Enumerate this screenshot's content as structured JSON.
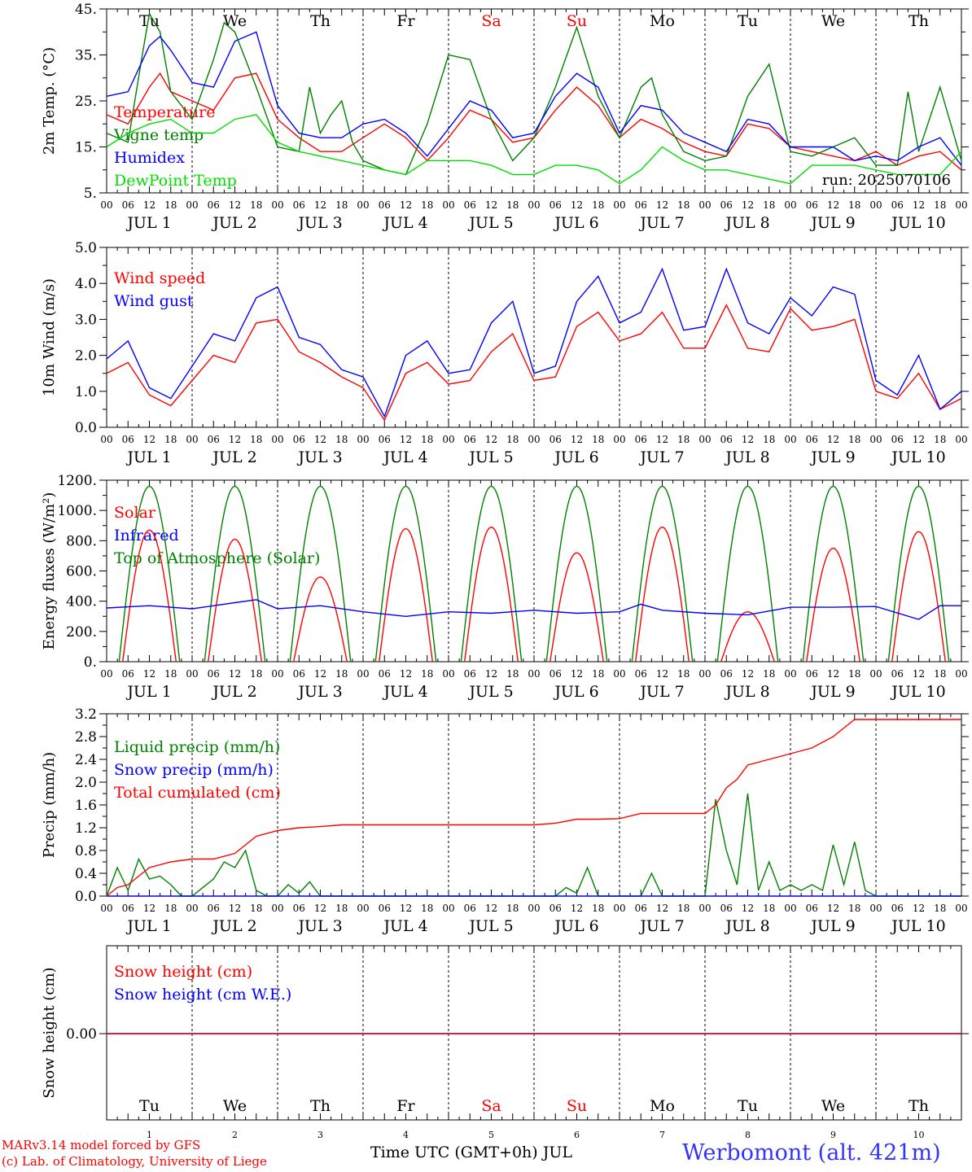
{
  "footer": {
    "model": "MARv3.14 model forced by GFS",
    "lab": "(c) Lab. of Climatology, University of Liege",
    "xlabel": "Time UTC (GMT+0h) JUL",
    "station": "Werbomont (alt. 421m)"
  },
  "run_label": "run: 2025070106",
  "days": [
    {
      "dow": "Tu",
      "date": "JUL  1",
      "num": "1",
      "weekend": false
    },
    {
      "dow": "We",
      "date": "JUL  2",
      "num": "2",
      "weekend": false
    },
    {
      "dow": "Th",
      "date": "JUL  3",
      "num": "3",
      "weekend": false
    },
    {
      "dow": "Fr",
      "date": "JUL  4",
      "num": "4",
      "weekend": false
    },
    {
      "dow": "Sa",
      "date": "JUL  5",
      "num": "5",
      "weekend": true
    },
    {
      "dow": "Su",
      "date": "JUL  6",
      "num": "6",
      "weekend": true
    },
    {
      "dow": "Mo",
      "date": "JUL  7",
      "num": "7",
      "weekend": false
    },
    {
      "dow": "Tu",
      "date": "JUL  8",
      "num": "8",
      "weekend": false
    },
    {
      "dow": "We",
      "date": "JUL  9",
      "num": "9",
      "weekend": false
    },
    {
      "dow": "Th",
      "date": "JUL 10",
      "num": "10",
      "weekend": false
    }
  ],
  "hour_ticks": [
    "00",
    "06",
    "12",
    "18"
  ],
  "end_tick": "00",
  "colors": {
    "red": "#ff0000",
    "green": "#008000",
    "blue": "#0000ff",
    "lime": "#00dd00",
    "weekend": "#ff0000"
  },
  "chart_data": [
    {
      "type": "line",
      "ylabel": "2m Temp. (°C)",
      "ylim": [
        5,
        45
      ],
      "yticks": [
        "5.",
        "15.",
        "25.",
        "35.",
        "45."
      ],
      "ytick_values": [
        5,
        15,
        25,
        35,
        45
      ],
      "show_dow": true,
      "series": [
        {
          "name": "Temperature",
          "color": "#ff0000",
          "x": [
            0,
            6,
            12,
            15,
            18,
            24,
            30,
            36,
            42,
            48,
            54,
            60,
            66,
            72,
            78,
            84,
            90,
            96,
            102,
            108,
            114,
            120,
            126,
            132,
            138,
            144,
            150,
            156,
            162,
            168,
            174,
            180,
            186,
            192,
            198,
            204,
            210,
            216,
            222,
            228,
            234,
            240
          ],
          "y": [
            22,
            20,
            28,
            31,
            27,
            25,
            23,
            30,
            31,
            21,
            17,
            14,
            14,
            17,
            20,
            17,
            12,
            17,
            23,
            21,
            16,
            17,
            23,
            28,
            24,
            17,
            21,
            19,
            16,
            14,
            13,
            20,
            19,
            15,
            14,
            13,
            12,
            14,
            11,
            13,
            14,
            10
          ]
        },
        {
          "name": "Vigne temp",
          "color": "#008000",
          "x": [
            0,
            6,
            10,
            12,
            15,
            18,
            24,
            30,
            33,
            36,
            42,
            48,
            54,
            57,
            60,
            63,
            66,
            69,
            72,
            78,
            84,
            90,
            96,
            102,
            108,
            114,
            120,
            126,
            132,
            138,
            144,
            150,
            153,
            156,
            162,
            168,
            174,
            180,
            186,
            192,
            198,
            204,
            210,
            216,
            222,
            225,
            228,
            234,
            240
          ],
          "y": [
            18,
            16,
            35,
            44,
            40,
            27,
            21,
            34,
            42,
            40,
            28,
            15,
            14,
            28,
            18,
            22,
            25,
            16,
            12,
            10,
            9,
            20,
            35,
            34,
            21,
            12,
            17,
            28,
            41,
            26,
            17,
            28,
            30,
            22,
            14,
            12,
            13,
            26,
            33,
            14,
            13,
            15,
            17,
            11,
            11,
            27,
            14,
            28,
            12
          ]
        },
        {
          "name": "Humidex",
          "color": "#0000ff",
          "x": [
            0,
            6,
            12,
            15,
            18,
            24,
            30,
            36,
            42,
            48,
            54,
            60,
            66,
            72,
            78,
            84,
            90,
            96,
            102,
            108,
            114,
            120,
            126,
            132,
            138,
            144,
            150,
            156,
            162,
            168,
            174,
            180,
            186,
            192,
            198,
            204,
            210,
            216,
            222,
            228,
            234,
            240
          ],
          "y": [
            26,
            27,
            37,
            39,
            36,
            29,
            28,
            38,
            40,
            24,
            18,
            17,
            17,
            20,
            21,
            18,
            13,
            19,
            25,
            23,
            17,
            18,
            26,
            31,
            28,
            18,
            24,
            23,
            18,
            16,
            14,
            21,
            20,
            15,
            15,
            15,
            12,
            13,
            12,
            15,
            17,
            11
          ]
        },
        {
          "name": "DewPoint Temp",
          "color": "#00dd00",
          "x": [
            0,
            6,
            12,
            18,
            24,
            30,
            36,
            42,
            48,
            54,
            60,
            66,
            72,
            78,
            84,
            90,
            96,
            102,
            108,
            114,
            120,
            126,
            132,
            138,
            144,
            150,
            156,
            162,
            168,
            174,
            180,
            186,
            192,
            198,
            204,
            210,
            216,
            222,
            228,
            234,
            240
          ],
          "y": [
            15,
            18,
            20,
            21,
            18,
            18,
            21,
            22,
            16,
            14,
            13,
            12,
            11,
            10,
            9,
            12,
            12,
            12,
            11,
            9,
            9,
            11,
            11,
            10,
            7,
            10,
            15,
            12,
            10,
            10,
            9,
            8,
            7,
            11,
            11,
            11,
            10,
            9,
            9,
            9,
            14
          ]
        }
      ]
    },
    {
      "type": "line",
      "ylabel": "10m Wind (m/s)",
      "ylim": [
        0,
        5
      ],
      "yticks": [
        "0.0",
        "1.0",
        "2.0",
        "3.0",
        "4.0",
        "5.0"
      ],
      "ytick_values": [
        0,
        1,
        2,
        3,
        4,
        5
      ],
      "show_dow": false,
      "series": [
        {
          "name": "Wind speed",
          "color": "#ff0000",
          "x": [
            0,
            6,
            12,
            18,
            24,
            30,
            36,
            42,
            48,
            54,
            60,
            66,
            72,
            78,
            84,
            90,
            96,
            102,
            108,
            114,
            120,
            126,
            132,
            138,
            144,
            150,
            156,
            162,
            168,
            174,
            180,
            186,
            192,
            198,
            204,
            210,
            216,
            222,
            228,
            234,
            240
          ],
          "y": [
            1.5,
            1.8,
            0.9,
            0.6,
            1.3,
            2.0,
            1.8,
            2.9,
            3.0,
            2.1,
            1.8,
            1.4,
            1.1,
            0.2,
            1.5,
            1.8,
            1.2,
            1.3,
            2.1,
            2.6,
            1.3,
            1.4,
            2.8,
            3.2,
            2.4,
            2.6,
            3.2,
            2.2,
            2.2,
            3.4,
            2.2,
            2.1,
            3.3,
            2.7,
            2.8,
            3.0,
            1.0,
            0.8,
            1.5,
            0.5,
            0.8
          ]
        },
        {
          "name": "Wind gust",
          "color": "#0000ff",
          "x": [
            0,
            6,
            12,
            18,
            24,
            30,
            36,
            42,
            48,
            54,
            60,
            66,
            72,
            78,
            84,
            90,
            96,
            102,
            108,
            114,
            120,
            126,
            132,
            138,
            144,
            150,
            156,
            162,
            168,
            174,
            180,
            186,
            192,
            198,
            204,
            210,
            216,
            222,
            228,
            234,
            240
          ],
          "y": [
            1.9,
            2.4,
            1.1,
            0.8,
            1.7,
            2.6,
            2.4,
            3.6,
            3.9,
            2.5,
            2.3,
            1.6,
            1.4,
            0.3,
            2.0,
            2.4,
            1.5,
            1.6,
            2.9,
            3.5,
            1.5,
            1.7,
            3.5,
            4.2,
            2.9,
            3.2,
            4.4,
            2.7,
            2.8,
            4.4,
            2.9,
            2.6,
            3.6,
            3.1,
            3.9,
            3.7,
            1.3,
            0.9,
            2.0,
            0.5,
            1.0
          ]
        }
      ]
    },
    {
      "type": "line",
      "ylabel": "Energy fluxes (W/m²)",
      "ylim": [
        0,
        1200
      ],
      "yticks": [
        "0.",
        "200.",
        "400.",
        "600.",
        "800.",
        "1000.",
        "1200."
      ],
      "ytick_values": [
        0,
        200,
        400,
        600,
        800,
        1000,
        1200
      ],
      "show_dow": false,
      "series": [
        {
          "name": "Solar",
          "color": "#ff0000",
          "peaks": [
            870,
            810,
            560,
            880,
            890,
            720,
            890,
            330,
            750,
            860
          ]
        },
        {
          "name": "Infrared",
          "color": "#0000ff",
          "x": [
            0,
            12,
            24,
            36,
            42,
            48,
            60,
            72,
            84,
            96,
            108,
            120,
            132,
            144,
            150,
            156,
            168,
            180,
            192,
            204,
            216,
            228,
            234,
            240
          ],
          "y": [
            355,
            370,
            350,
            390,
            410,
            350,
            370,
            330,
            300,
            330,
            320,
            340,
            320,
            330,
            380,
            340,
            320,
            310,
            360,
            360,
            365,
            280,
            370,
            370
          ]
        },
        {
          "name": "Top of Atmosphere (Solar)",
          "color": "#008000",
          "peak": 1160
        }
      ]
    },
    {
      "type": "line",
      "ylabel": "Precip (mm/h)",
      "ylim": [
        0,
        3.2
      ],
      "yticks": [
        "0.0",
        "0.4",
        "0.8",
        "1.2",
        "1.6",
        "2.0",
        "2.4",
        "2.8",
        "3.2"
      ],
      "ytick_values": [
        0,
        0.4,
        0.8,
        1.2,
        1.6,
        2.0,
        2.4,
        2.8,
        3.2
      ],
      "show_dow": false,
      "series": [
        {
          "name": "Liquid precip (mm/h)",
          "color": "#008000",
          "x": [
            0,
            3,
            6,
            9,
            12,
            15,
            18,
            21,
            24,
            30,
            33,
            36,
            39,
            42,
            45,
            48,
            51,
            54,
            57,
            60,
            66,
            72,
            96,
            120,
            126,
            129,
            132,
            135,
            138,
            144,
            150,
            153,
            156,
            162,
            168,
            171,
            174,
            177,
            180,
            183,
            186,
            189,
            192,
            195,
            198,
            201,
            204,
            207,
            210,
            213,
            216,
            240
          ],
          "y": [
            0,
            0.5,
            0.1,
            0.65,
            0.3,
            0.35,
            0.2,
            0,
            0,
            0.3,
            0.6,
            0.5,
            0.8,
            0.1,
            0,
            0,
            0.2,
            0.05,
            0.25,
            0,
            0,
            0,
            0,
            0,
            0,
            0.15,
            0.05,
            0.5,
            0,
            0,
            0,
            0.4,
            0,
            0,
            0,
            1.7,
            0.8,
            0.2,
            1.8,
            0.1,
            0.6,
            0.1,
            0.2,
            0.1,
            0.2,
            0.1,
            0.9,
            0.2,
            0.95,
            0.1,
            0,
            0
          ]
        },
        {
          "name": "Snow precip (mm/h)",
          "color": "#0000ff",
          "x": [
            0,
            240
          ],
          "y": [
            0,
            0
          ]
        },
        {
          "name": "Total cumulated (cm)",
          "color": "#ff0000",
          "x": [
            0,
            3,
            6,
            9,
            12,
            18,
            24,
            30,
            36,
            42,
            48,
            54,
            60,
            66,
            72,
            96,
            120,
            126,
            132,
            138,
            144,
            150,
            156,
            162,
            168,
            171,
            174,
            177,
            180,
            186,
            192,
            198,
            204,
            207,
            210,
            213,
            216,
            240
          ],
          "y": [
            0,
            0.15,
            0.2,
            0.35,
            0.5,
            0.6,
            0.65,
            0.65,
            0.75,
            1.05,
            1.15,
            1.2,
            1.22,
            1.25,
            1.25,
            1.25,
            1.25,
            1.28,
            1.35,
            1.35,
            1.36,
            1.45,
            1.45,
            1.45,
            1.45,
            1.6,
            1.9,
            2.05,
            2.3,
            2.4,
            2.5,
            2.6,
            2.8,
            2.95,
            3.1,
            3.1,
            3.1,
            3.1
          ]
        }
      ]
    },
    {
      "type": "line",
      "ylabel": "Snow height (cm)",
      "yticks": [
        "0.00"
      ],
      "show_dow": true,
      "series": [
        {
          "name": "Snow height (cm)",
          "color": "#ff0000",
          "x": [
            0,
            240
          ],
          "y": [
            0,
            0
          ]
        },
        {
          "name": "Snow height (cm W.E.)",
          "color": "#0000ff",
          "x": [
            0,
            240
          ],
          "y": [
            0,
            0
          ]
        }
      ]
    }
  ]
}
